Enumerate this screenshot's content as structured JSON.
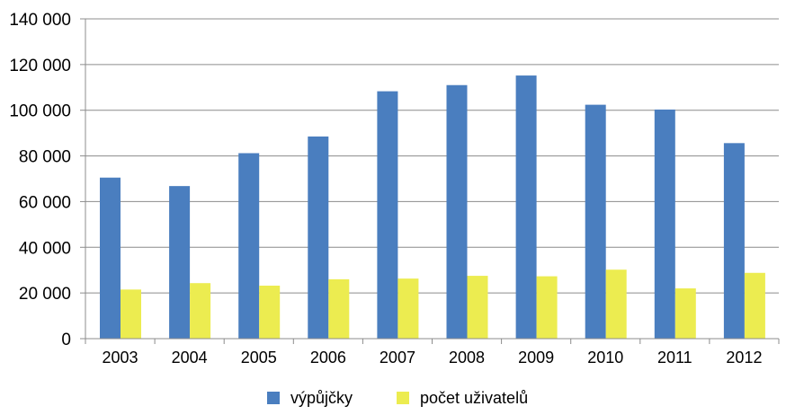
{
  "chart_data": {
    "type": "bar",
    "title": "",
    "xlabel": "",
    "ylabel": "",
    "categories": [
      "2003",
      "2004",
      "2005",
      "2006",
      "2007",
      "2008",
      "2009",
      "2010",
      "2011",
      "2012"
    ],
    "series": [
      {
        "name": "výpůjčky",
        "color": "#4a7ebf",
        "values": [
          70500,
          66800,
          81200,
          88500,
          108300,
          111000,
          115200,
          102400,
          100300,
          85600
        ]
      },
      {
        "name": "počet uživatelů",
        "color": "#ecec50",
        "values": [
          21500,
          24300,
          23200,
          26000,
          26300,
          27500,
          27300,
          30200,
          22000,
          28800
        ]
      }
    ],
    "ylim": [
      0,
      140000
    ],
    "yticks": [
      0,
      20000,
      40000,
      60000,
      80000,
      100000,
      120000,
      140000
    ],
    "ytick_labels": [
      "0",
      "20 000",
      "40 000",
      "60 000",
      "80 000",
      "100 000",
      "120 000",
      "140 000"
    ],
    "grid": true,
    "legend_position": "bottom"
  }
}
